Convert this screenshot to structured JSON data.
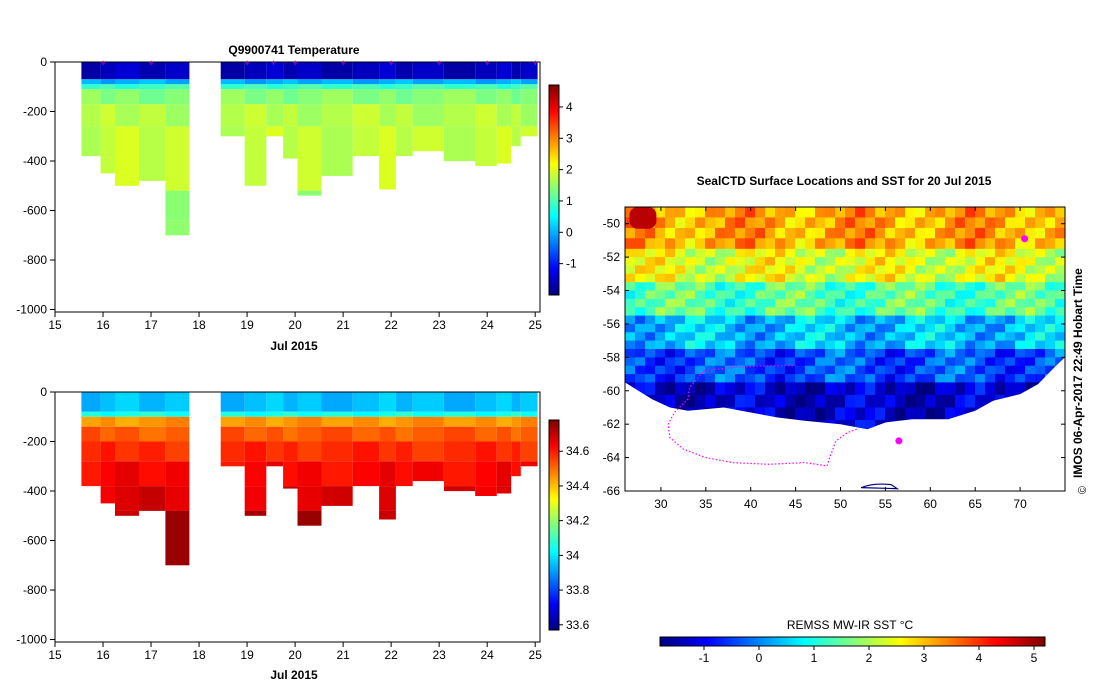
{
  "colors": {
    "jet": [
      "#00007f",
      "#0000ff",
      "#007fff",
      "#00ffff",
      "#7fff7f",
      "#ffff00",
      "#ff7f00",
      "#ff0000",
      "#7f0000"
    ],
    "track": "#ff00ff",
    "land": "#ffffff"
  },
  "chart_data": [
    {
      "id": "temperature-section",
      "type": "heatmap",
      "title": "Q9900741  Temperature",
      "xlabel": "Jul 2015",
      "xlim": [
        15,
        25.1
      ],
      "ylim": [
        -1010,
        0
      ],
      "xticks": [
        "15",
        "16",
        "17",
        "18",
        "19",
        "20",
        "21",
        "22",
        "23",
        "24",
        "25"
      ],
      "yticks": [
        "0",
        "-200",
        "-400",
        "-600",
        "-800",
        "-1000"
      ],
      "colorbar": {
        "min": -2.0,
        "max": 4.7,
        "ticks": [
          "-1",
          "0",
          "1",
          "2",
          "3",
          "4"
        ]
      },
      "profiles": [
        {
          "x0": 15.55,
          "x1": 15.95,
          "depth": 380
        },
        {
          "x0": 15.95,
          "x1": 16.25,
          "depth": 450
        },
        {
          "x0": 16.25,
          "x1": 16.75,
          "depth": 500
        },
        {
          "x0": 16.75,
          "x1": 17.3,
          "depth": 480
        },
        {
          "x0": 17.3,
          "x1": 17.8,
          "depth": 700
        },
        {
          "x0": 18.45,
          "x1": 18.95,
          "depth": 300
        },
        {
          "x0": 18.95,
          "x1": 19.4,
          "depth": 500
        },
        {
          "x0": 19.4,
          "x1": 19.75,
          "depth": 300
        },
        {
          "x0": 19.75,
          "x1": 20.05,
          "depth": 390
        },
        {
          "x0": 20.05,
          "x1": 20.55,
          "depth": 540
        },
        {
          "x0": 20.55,
          "x1": 21.2,
          "depth": 460
        },
        {
          "x0": 21.2,
          "x1": 21.75,
          "depth": 380
        },
        {
          "x0": 21.75,
          "x1": 22.1,
          "depth": 515
        },
        {
          "x0": 22.1,
          "x1": 22.45,
          "depth": 380
        },
        {
          "x0": 22.45,
          "x1": 23.1,
          "depth": 360
        },
        {
          "x0": 23.1,
          "x1": 23.75,
          "depth": 400
        },
        {
          "x0": 23.75,
          "x1": 24.2,
          "depth": 420
        },
        {
          "x0": 24.2,
          "x1": 24.5,
          "depth": 410
        },
        {
          "x0": 24.5,
          "x1": 24.7,
          "depth": 340
        },
        {
          "x0": 24.7,
          "x1": 25.05,
          "depth": 300
        }
      ],
      "layers": [
        {
          "from": 0,
          "to": 70,
          "value": -1.6
        },
        {
          "from": 70,
          "to": 90,
          "value": 0.0
        },
        {
          "from": 90,
          "to": 110,
          "value": 0.9
        },
        {
          "from": 110,
          "to": 170,
          "value": 1.4
        },
        {
          "from": 170,
          "to": 260,
          "value": 1.7
        },
        {
          "from": 260,
          "to": 520,
          "value": 1.8
        },
        {
          "from": 520,
          "to": 640,
          "value": 1.5
        },
        {
          "from": 640,
          "to": 1000,
          "value": 1.3
        }
      ],
      "surface_markers": [
        16,
        17,
        19,
        19.55,
        20,
        21,
        22,
        23,
        24,
        25
      ]
    },
    {
      "id": "salinity-section",
      "type": "heatmap",
      "title": "",
      "xlabel": "Jul 2015",
      "xlim": [
        15,
        25.1
      ],
      "ylim": [
        -1010,
        0
      ],
      "xticks": [
        "15",
        "16",
        "17",
        "18",
        "19",
        "20",
        "21",
        "22",
        "23",
        "24",
        "25"
      ],
      "yticks": [
        "0",
        "-200",
        "-400",
        "-600",
        "-800",
        "-1000"
      ],
      "colorbar": {
        "min": 33.57,
        "max": 34.78,
        "ticks": [
          "33.6",
          "33.8",
          "34",
          "34.2",
          "34.4",
          "34.6"
        ]
      },
      "layers": [
        {
          "from": 0,
          "to": 80,
          "value": 33.95
        },
        {
          "from": 80,
          "to": 100,
          "value": 34.05
        },
        {
          "from": 100,
          "to": 140,
          "value": 34.45
        },
        {
          "from": 140,
          "to": 200,
          "value": 34.52
        },
        {
          "from": 200,
          "to": 280,
          "value": 34.58
        },
        {
          "from": 280,
          "to": 380,
          "value": 34.63
        },
        {
          "from": 380,
          "to": 480,
          "value": 34.67
        },
        {
          "from": 480,
          "to": 1000,
          "value": 34.72
        }
      ]
    },
    {
      "id": "sst-map",
      "type": "heatmap",
      "title": "SealCTD Surface Locations and SST for 20 Jul 2015",
      "xlabel": "",
      "ylabel": "",
      "xlim": [
        26,
        75
      ],
      "ylim": [
        -66,
        -49
      ],
      "xticks": [
        "30",
        "35",
        "40",
        "45",
        "50",
        "55",
        "60",
        "65",
        "70"
      ],
      "yticks": [
        "-50",
        "-52",
        "-54",
        "-56",
        "-58",
        "-60",
        "-62",
        "-64",
        "-66"
      ],
      "colorbar_label": "REMSS MW-IR SST °C",
      "colorbar": {
        "min": -1.8,
        "max": 5.2,
        "ticks": [
          "-1",
          "0",
          "1",
          "2",
          "3",
          "4",
          "5"
        ]
      },
      "sst_bands": [
        {
          "lat_top": -49,
          "lat_bot": -51.5,
          "value": 3.2
        },
        {
          "lat_top": -51.5,
          "lat_bot": -53.5,
          "value": 2.4
        },
        {
          "lat_top": -53.5,
          "lat_bot": -55.5,
          "value": 1.4
        },
        {
          "lat_top": -55.5,
          "lat_bot": -57.5,
          "value": 0.4
        },
        {
          "lat_top": -57.5,
          "lat_bot": -59.5,
          "value": -0.4
        },
        {
          "lat_top": -59.5,
          "lat_bot": -62.5,
          "value": -1.3
        }
      ],
      "ice_edge": [
        [
          26,
          -59.5
        ],
        [
          29,
          -60.5
        ],
        [
          31,
          -61.0
        ],
        [
          33,
          -61.2
        ],
        [
          37,
          -61.0
        ],
        [
          40,
          -61.3
        ],
        [
          43,
          -61.6
        ],
        [
          46,
          -61.8
        ],
        [
          50,
          -62.0
        ],
        [
          53,
          -62.3
        ],
        [
          55,
          -61.9
        ],
        [
          58,
          -61.7
        ],
        [
          62,
          -61.7
        ],
        [
          65,
          -61.2
        ],
        [
          67,
          -60.6
        ],
        [
          70,
          -60.2
        ],
        [
          72,
          -59.6
        ],
        [
          74,
          -58.5
        ],
        [
          75,
          -58.0
        ]
      ],
      "seal_track": [
        [
          51.8,
          -62.3
        ],
        [
          50.8,
          -62.5
        ],
        [
          49.5,
          -63.0
        ],
        [
          48.8,
          -64.0
        ],
        [
          48.5,
          -64.5
        ],
        [
          46.0,
          -64.3
        ],
        [
          42.0,
          -64.4
        ],
        [
          38.0,
          -64.3
        ],
        [
          35.0,
          -64.0
        ],
        [
          32.5,
          -63.5
        ],
        [
          31.0,
          -62.8
        ],
        [
          30.8,
          -62.0
        ],
        [
          31.5,
          -61.3
        ],
        [
          33.0,
          -60.5
        ],
        [
          33.2,
          -59.8
        ],
        [
          34.8,
          -58.8
        ],
        [
          38.0,
          -58.6
        ],
        [
          42.0,
          -58.5
        ],
        [
          45.0,
          -58.5
        ]
      ],
      "seal_locations": [
        [
          70.5,
          -50.9
        ],
        [
          56.5,
          -63.0
        ]
      ],
      "warm_spot": {
        "lon": [
          26.5,
          29.5
        ],
        "lat": [
          -49,
          -50.3
        ],
        "value": 4.8
      },
      "timestamp": "IMOS 06-Apr-2017 22:49 Hobart Time",
      "copyright": "©"
    }
  ]
}
